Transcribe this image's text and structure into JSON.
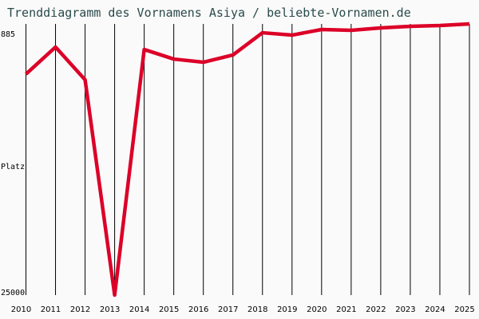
{
  "chart_data": {
    "type": "line",
    "title": "Trenddiagramm des Vornamens Asiya / beliebte-Vornamen.de",
    "xlabel": "",
    "ylabel": "Platz",
    "x": [
      2010,
      2011,
      2012,
      2013,
      2014,
      2015,
      2016,
      2017,
      2018,
      2019,
      2020,
      2021,
      2022,
      2023,
      2024,
      2025
    ],
    "series": [
      {
        "values": [
          5350,
          2940,
          5850,
          25000,
          3160,
          4010,
          4290,
          3650,
          1670,
          1880,
          1380,
          1450,
          1240,
          1100,
          1030,
          885
        ],
        "color": "#dc0028"
      }
    ],
    "ylim": [
      885,
      25000
    ],
    "y_inverted": true,
    "ytick_labels": [
      "885",
      "25000"
    ],
    "grid": "vertical",
    "background": "#fafafa"
  }
}
